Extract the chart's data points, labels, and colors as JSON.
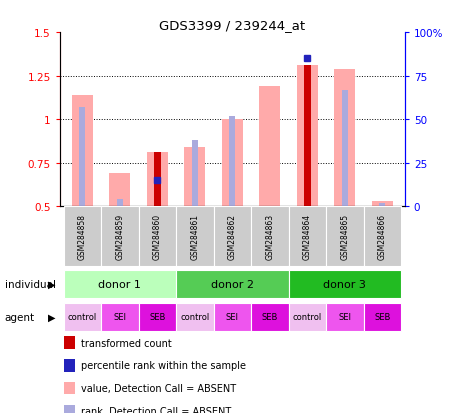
{
  "title": "GDS3399 / 239244_at",
  "samples": [
    "GSM284858",
    "GSM284859",
    "GSM284860",
    "GSM284861",
    "GSM284862",
    "GSM284863",
    "GSM284864",
    "GSM284865",
    "GSM284866"
  ],
  "pink_bar_values": [
    1.14,
    0.69,
    0.81,
    0.84,
    1.0,
    1.19,
    1.31,
    1.29,
    0.53
  ],
  "red_bar_values": [
    null,
    null,
    0.81,
    null,
    null,
    null,
    1.31,
    null,
    null
  ],
  "blue_square_pct": [
    null,
    null,
    15,
    null,
    null,
    null,
    85,
    null,
    null
  ],
  "light_blue_bar_pct": [
    57,
    4,
    null,
    38,
    52,
    null,
    null,
    67,
    2
  ],
  "ylim": [
    0.5,
    1.5
  ],
  "y2lim": [
    0,
    100
  ],
  "yticks": [
    0.5,
    0.75,
    1.0,
    1.25,
    1.5
  ],
  "y2ticks": [
    0,
    25,
    50,
    75,
    100
  ],
  "ytick_labels": [
    "0.5",
    "0.75",
    "1",
    "1.25",
    "1.5"
  ],
  "y2tick_labels": [
    "0",
    "25",
    "50",
    "75",
    "100%"
  ],
  "donor_groups": [
    {
      "label": "donor 1",
      "start": 0,
      "end": 3,
      "color": "#bbffbb"
    },
    {
      "label": "donor 2",
      "start": 3,
      "end": 6,
      "color": "#55cc55"
    },
    {
      "label": "donor 3",
      "start": 6,
      "end": 9,
      "color": "#22bb22"
    }
  ],
  "agent_labels": [
    "control",
    "SEI",
    "SEB",
    "control",
    "SEI",
    "SEB",
    "control",
    "SEI",
    "SEB"
  ],
  "agent_colors": [
    "#f0c0f0",
    "#ee55ee",
    "#dd11dd",
    "#f0c0f0",
    "#ee55ee",
    "#dd11dd",
    "#f0c0f0",
    "#ee55ee",
    "#dd11dd"
  ],
  "pink_bar_color": "#ffaaaa",
  "red_bar_color": "#cc0000",
  "blue_sq_color": "#2222bb",
  "light_blue_color": "#aaaadd",
  "legend_items": [
    {
      "label": "transformed count",
      "color": "#cc0000"
    },
    {
      "label": "percentile rank within the sample",
      "color": "#2222bb"
    },
    {
      "label": "value, Detection Call = ABSENT",
      "color": "#ffaaaa"
    },
    {
      "label": "rank, Detection Call = ABSENT",
      "color": "#aaaadd"
    }
  ]
}
